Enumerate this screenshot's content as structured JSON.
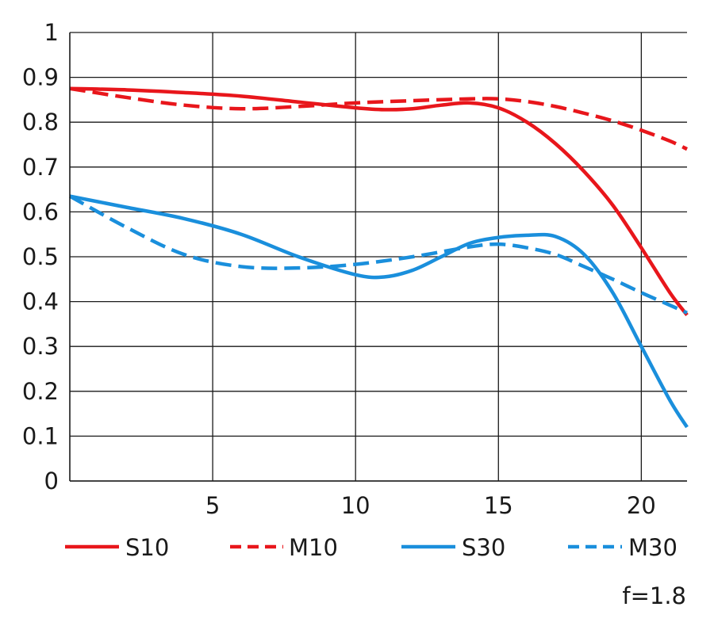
{
  "chart_data": {
    "type": "line",
    "title": "",
    "xlabel": "",
    "ylabel": "",
    "xlim": [
      0,
      21.6
    ],
    "ylim": [
      0,
      1
    ],
    "x_ticks": [
      5,
      10,
      15,
      20
    ],
    "y_ticks": [
      0,
      0.1,
      0.2,
      0.3,
      0.4,
      0.5,
      0.6,
      0.7,
      0.8,
      0.9,
      1
    ],
    "x_tick_labels": [
      "5",
      "10",
      "15",
      "20"
    ],
    "y_tick_labels": [
      "0",
      "0.1",
      "0.2",
      "0.3",
      "0.4",
      "0.5",
      "0.6",
      "0.7",
      "0.8",
      "0.9",
      "1"
    ],
    "grid": true,
    "legend_position": "bottom",
    "series": [
      {
        "name": "S10",
        "color": "#e8161b",
        "style": "solid",
        "x": [
          0,
          2,
          4,
          6,
          8,
          10,
          11,
          12,
          13,
          14,
          15,
          16,
          17,
          18,
          19,
          20,
          21,
          21.6
        ],
        "y": [
          0.875,
          0.872,
          0.866,
          0.858,
          0.845,
          0.832,
          0.828,
          0.83,
          0.838,
          0.843,
          0.832,
          0.8,
          0.752,
          0.69,
          0.615,
          0.52,
          0.42,
          0.37
        ]
      },
      {
        "name": "M10",
        "color": "#e8161b",
        "style": "dashed",
        "x": [
          0,
          2,
          4,
          6,
          8,
          10,
          12,
          14,
          15,
          16,
          17,
          18,
          19,
          20,
          21,
          21.6
        ],
        "y": [
          0.875,
          0.855,
          0.838,
          0.83,
          0.835,
          0.843,
          0.848,
          0.852,
          0.852,
          0.846,
          0.835,
          0.82,
          0.803,
          0.782,
          0.758,
          0.74
        ]
      },
      {
        "name": "S30",
        "color": "#1a8fdc",
        "style": "solid",
        "x": [
          0,
          2,
          4,
          6,
          8,
          10,
          11,
          12,
          13,
          14,
          15,
          16,
          17,
          18,
          19,
          20,
          21,
          21.6
        ],
        "y": [
          0.635,
          0.61,
          0.585,
          0.55,
          0.5,
          0.46,
          0.455,
          0.47,
          0.5,
          0.53,
          0.543,
          0.548,
          0.545,
          0.505,
          0.42,
          0.3,
          0.18,
          0.12
        ]
      },
      {
        "name": "M30",
        "color": "#1a8fdc",
        "style": "dashed",
        "x": [
          0,
          2,
          4,
          6,
          8,
          10,
          12,
          14,
          15,
          16,
          17,
          18,
          19,
          20,
          21,
          21.6
        ],
        "y": [
          0.635,
          0.565,
          0.505,
          0.478,
          0.475,
          0.483,
          0.5,
          0.522,
          0.528,
          0.52,
          0.505,
          0.478,
          0.45,
          0.42,
          0.392,
          0.375
        ]
      }
    ],
    "annotation": "f=1.8"
  }
}
